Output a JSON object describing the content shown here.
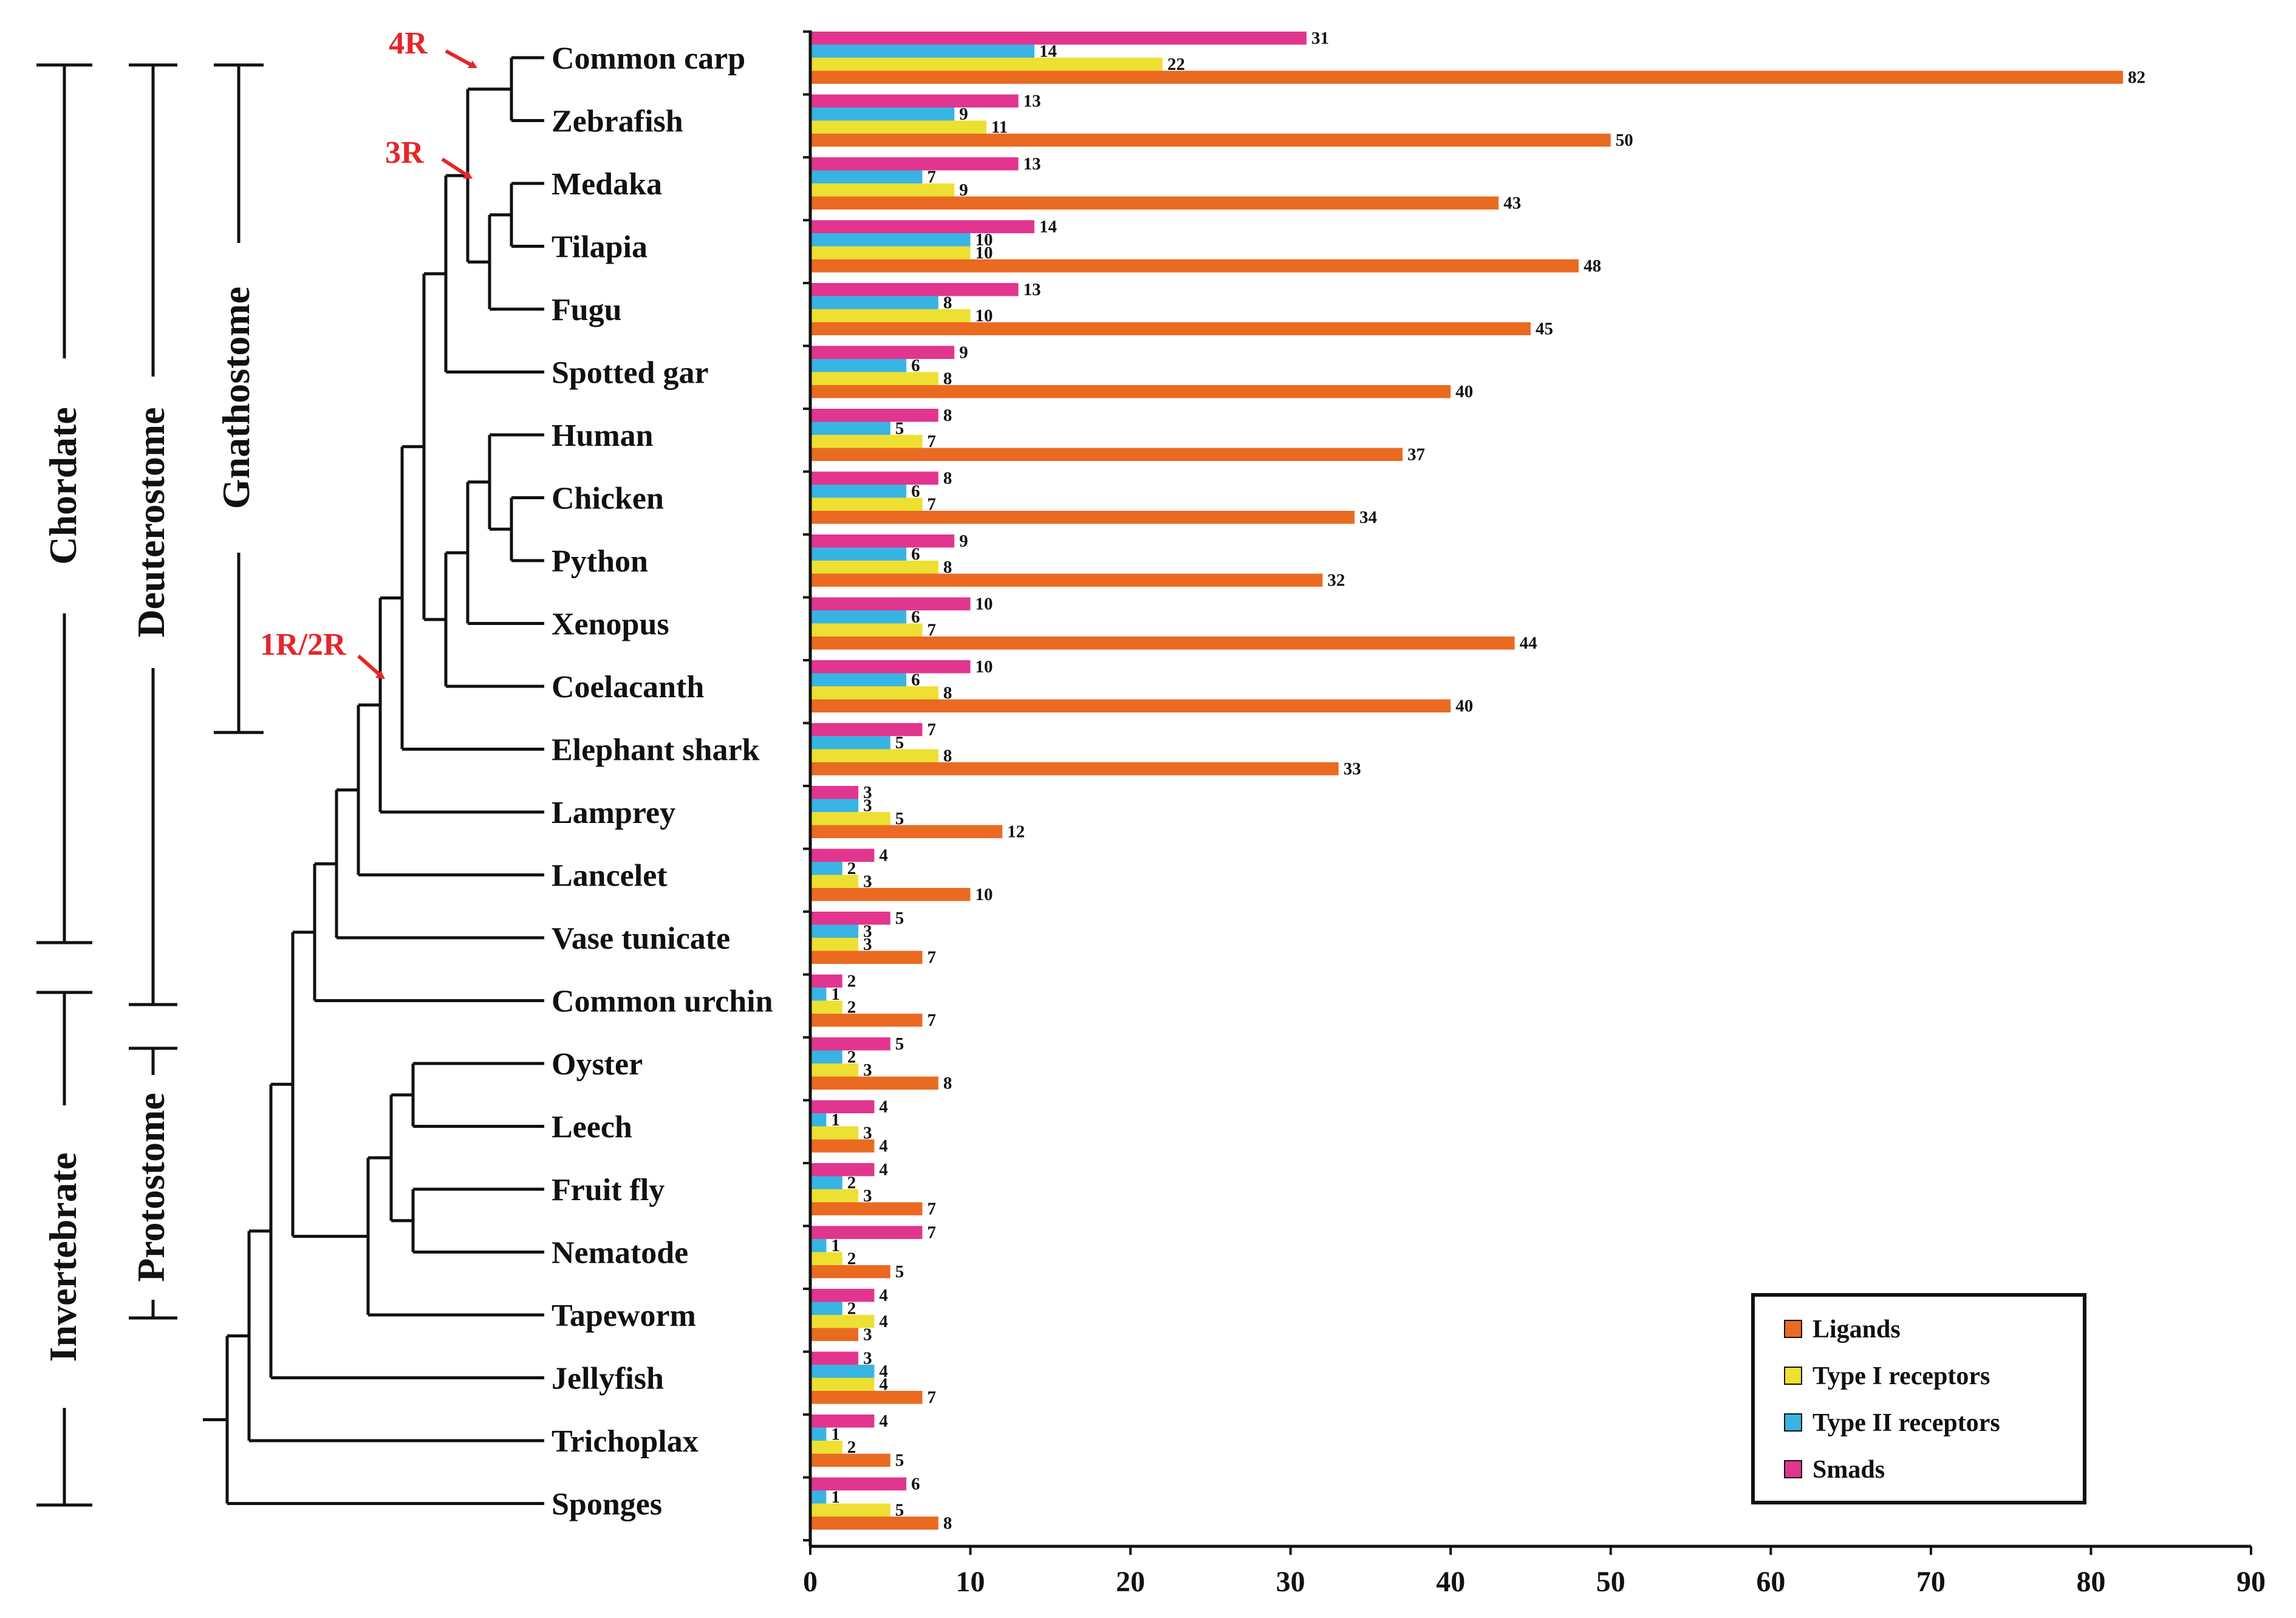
{
  "chart_data": {
    "type": "bar",
    "orientation": "horizontal",
    "categories": [
      "Common carp",
      "Zebrafish",
      "Medaka",
      "Tilapia",
      "Fugu",
      "Spotted gar",
      "Human",
      "Chicken",
      "Python",
      "Xenopus",
      "Coelacanth",
      "Elephant shark",
      "Lamprey",
      "Lancelet",
      "Vase tunicate",
      "Common urchin",
      "Oyster",
      "Leech",
      "Fruit fly",
      "Nematode",
      "Tapeworm",
      "Jellyfish",
      "Trichoplax",
      "Sponges"
    ],
    "series": [
      {
        "name": "Smads",
        "color": "#e2358f",
        "values": [
          31,
          13,
          13,
          14,
          13,
          9,
          8,
          8,
          9,
          10,
          10,
          7,
          3,
          4,
          5,
          2,
          5,
          4,
          4,
          7,
          4,
          3,
          4,
          6
        ]
      },
      {
        "name": "Type II receptors",
        "color": "#38b4e3",
        "values": [
          14,
          9,
          7,
          10,
          8,
          6,
          5,
          6,
          6,
          6,
          6,
          5,
          3,
          2,
          3,
          1,
          2,
          1,
          2,
          1,
          2,
          4,
          1,
          1
        ]
      },
      {
        "name": "Type I receptors",
        "color": "#ede032",
        "values": [
          22,
          11,
          9,
          10,
          10,
          8,
          7,
          7,
          8,
          7,
          8,
          8,
          5,
          3,
          3,
          2,
          3,
          3,
          3,
          2,
          4,
          4,
          2,
          5
        ]
      },
      {
        "name": "Ligands",
        "color": "#ea6a22",
        "values": [
          82,
          50,
          43,
          48,
          45,
          40,
          37,
          34,
          32,
          44,
          40,
          33,
          12,
          10,
          7,
          7,
          8,
          4,
          7,
          5,
          3,
          7,
          5,
          8
        ]
      }
    ],
    "legend": [
      "Ligands",
      "Type I receptors",
      "Type II receptors",
      "Smads"
    ],
    "legend_position": "bottom-right",
    "xlim": [
      0,
      90
    ],
    "xticks": [
      "0",
      "10",
      "20",
      "30",
      "40",
      "50",
      "60",
      "70",
      "80",
      "90"
    ],
    "xlabel": "",
    "ylabel": "",
    "clades": {
      "chordate": "Chordate",
      "invertebrate": "Invertebrate",
      "deuterostome": "Deuterostome",
      "protostome": "Protostome",
      "gnathostome": "Gnathostome"
    },
    "duplication_events": {
      "wgd_4r": "4R",
      "wgd_3r": "3R",
      "wgd_1r2r": "1R/2R"
    }
  }
}
